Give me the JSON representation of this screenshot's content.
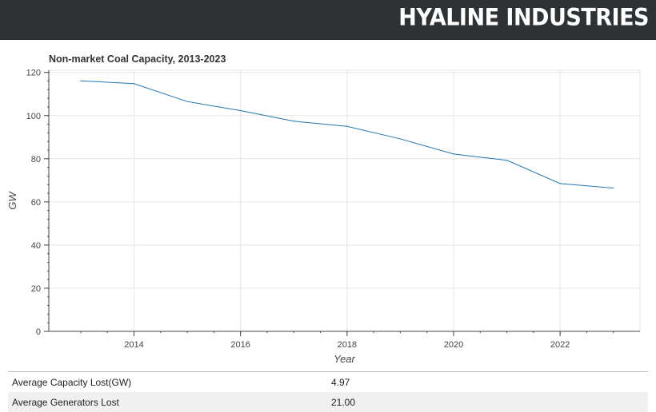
{
  "header": {
    "brand": "HYALINE INDUSTRIES"
  },
  "chart_data": {
    "type": "line",
    "title": "Non-market Coal Capacity, 2013-2023",
    "xlabel": "Year",
    "ylabel": "GW",
    "x": [
      2013,
      2014,
      2015,
      2016,
      2017,
      2018,
      2019,
      2020,
      2021,
      2022,
      2023
    ],
    "series": [
      {
        "values": [
          116.1,
          114.8,
          106.5,
          102.3,
          97.4,
          95.0,
          89.2,
          82.2,
          79.3,
          68.5,
          66.4
        ]
      }
    ],
    "xlim": [
      2012.4,
      2023.5
    ],
    "ylim": [
      0,
      121
    ],
    "xticks": [
      2014,
      2016,
      2018,
      2020,
      2022
    ],
    "yticks": [
      0,
      20,
      40,
      60,
      80,
      100,
      120
    ],
    "grid": true,
    "line_color": "#1f77b4"
  },
  "stats": [
    {
      "label": "Average Capacity Lost(GW)",
      "value": "4.97"
    },
    {
      "label": "Average Generators Lost",
      "value": "21.00"
    }
  ]
}
